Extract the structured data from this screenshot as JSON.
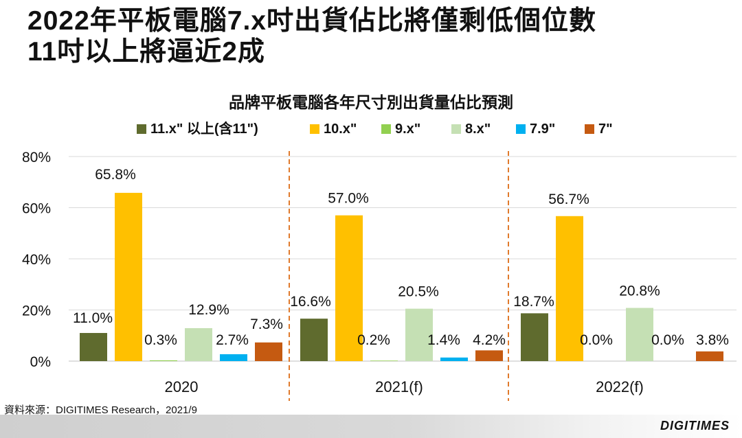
{
  "headline": {
    "line1": "2022年平板電腦7.x吋出貨佔比將僅剩低個位數",
    "line2": "11吋以上將逼近2成"
  },
  "source": "資料來源：DIGITIMES Research，2021/9",
  "brand": "DIGITIMES",
  "colors": {
    "11.x\" 以上(含11\")": "#5f6b2e",
    "10.x\"": "#ffc000",
    "9.x\"": "#92d050",
    "8.x\"": "#c5e0b4",
    "7.9\"": "#00b0f0",
    "7\"": "#c55a11",
    "separator": "#e07a2c",
    "gridline": "#d9d9d9"
  },
  "chart_data": {
    "type": "bar",
    "title": "品牌平板電腦各年尺寸別出貨量佔比預測",
    "categories": [
      "2020",
      "2021(f)",
      "2022(f)"
    ],
    "series": [
      {
        "name": "11.x\" 以上(含11\")",
        "values": [
          11.0,
          16.6,
          18.7
        ],
        "labels": [
          "11.0%",
          "16.6%",
          "18.7%"
        ]
      },
      {
        "name": "10.x\"",
        "values": [
          65.8,
          57.0,
          56.7
        ],
        "labels": [
          "65.8%",
          "57.0%",
          "56.7%"
        ]
      },
      {
        "name": "9.x\"",
        "values": [
          0.3,
          0.2,
          0.0
        ],
        "labels": [
          "0.3%",
          "0.2%",
          "0.0%"
        ]
      },
      {
        "name": "8.x\"",
        "values": [
          12.9,
          20.5,
          20.8
        ],
        "labels": [
          "12.9%",
          "20.5%",
          "20.8%"
        ]
      },
      {
        "name": "7.9\"",
        "values": [
          2.7,
          1.4,
          0.0
        ],
        "labels": [
          "2.7%",
          "1.4%",
          "0.0%"
        ]
      },
      {
        "name": "7\"",
        "values": [
          7.3,
          4.2,
          3.8
        ],
        "labels": [
          "7.3%",
          "4.2%",
          "3.8%"
        ]
      }
    ],
    "ylim": [
      0,
      80
    ],
    "yticks": [
      "0%",
      "20%",
      "40%",
      "60%",
      "80%"
    ],
    "ytick_values": [
      0,
      20,
      40,
      60,
      80
    ],
    "xlabel": "",
    "ylabel": "",
    "legend": "top",
    "grid": true
  }
}
